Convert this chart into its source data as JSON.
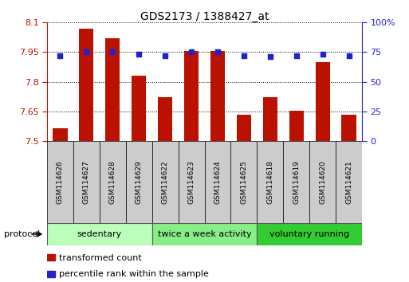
{
  "title": "GDS2173 / 1388427_at",
  "categories": [
    "GSM114626",
    "GSM114627",
    "GSM114628",
    "GSM114629",
    "GSM114622",
    "GSM114623",
    "GSM114624",
    "GSM114625",
    "GSM114618",
    "GSM114619",
    "GSM114620",
    "GSM114621"
  ],
  "transformed_count": [
    7.565,
    8.07,
    8.02,
    7.83,
    7.72,
    7.955,
    7.955,
    7.635,
    7.72,
    7.655,
    7.9,
    7.635
  ],
  "percentile_rank": [
    72,
    75,
    75,
    73,
    72,
    75,
    75,
    72,
    71,
    72,
    73,
    72
  ],
  "groups": [
    {
      "label": "sedentary",
      "indices": [
        0,
        1,
        2,
        3
      ],
      "color": "#bbffbb"
    },
    {
      "label": "twice a week activity",
      "indices": [
        4,
        5,
        6,
        7
      ],
      "color": "#88ee88"
    },
    {
      "label": "voluntary running",
      "indices": [
        8,
        9,
        10,
        11
      ],
      "color": "#33cc33"
    }
  ],
  "ylim_left": [
    7.5,
    8.1
  ],
  "ylim_right": [
    0,
    100
  ],
  "yticks_left": [
    7.5,
    7.65,
    7.8,
    7.95,
    8.1
  ],
  "yticks_right": [
    0,
    25,
    50,
    75,
    100
  ],
  "bar_color": "#bb1100",
  "dot_color": "#2222cc",
  "cell_color": "#cccccc",
  "bg_color": "#ffffff"
}
